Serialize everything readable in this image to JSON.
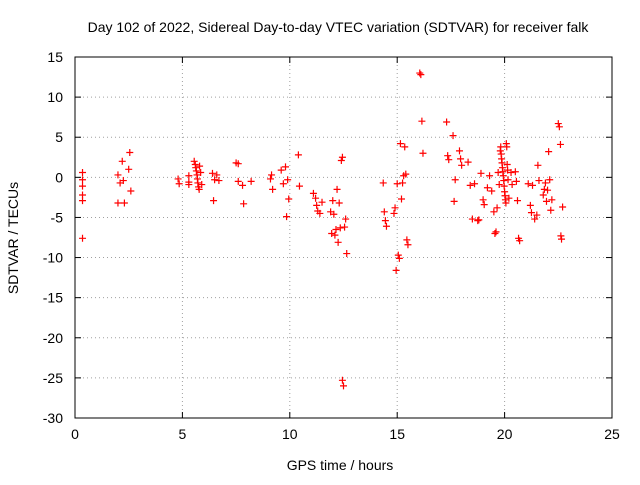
{
  "chart_data": {
    "type": "scatter",
    "title": "Day 102 of 2022, Sidereal Day-to-day VTEC variation (SDTVAR) for receiver falk",
    "xlabel": "GPS time / hours",
    "ylabel": "SDTVAR / TECUs",
    "xlim": [
      0,
      25
    ],
    "ylim": [
      -30,
      15
    ],
    "xticks": [
      0,
      5,
      10,
      15,
      20,
      25
    ],
    "yticks": [
      -30,
      -25,
      -20,
      -15,
      -10,
      -5,
      0,
      5,
      10,
      15
    ],
    "grid": true,
    "marker": "plus",
    "colors": {
      "points": "#ff0000",
      "grid": "#a0a0a0",
      "axes": "#000000"
    },
    "series": [
      {
        "name": "SDTVAR",
        "points": [
          [
            0.35,
            0.6
          ],
          [
            0.35,
            -0.3
          ],
          [
            0.35,
            -1.1
          ],
          [
            0.35,
            -2.2
          ],
          [
            0.35,
            -2.9
          ],
          [
            0.35,
            -7.6
          ],
          [
            2.0,
            0.3
          ],
          [
            2.0,
            -3.2
          ],
          [
            2.1,
            -0.7
          ],
          [
            2.2,
            2.0
          ],
          [
            2.25,
            -0.4
          ],
          [
            2.3,
            -3.2
          ],
          [
            2.5,
            1.0
          ],
          [
            2.55,
            3.1
          ],
          [
            2.6,
            -1.7
          ],
          [
            4.8,
            -0.2
          ],
          [
            4.85,
            -0.8
          ],
          [
            5.3,
            0.2
          ],
          [
            5.3,
            -0.6
          ],
          [
            5.3,
            -0.9
          ],
          [
            5.55,
            2.0
          ],
          [
            5.6,
            1.6
          ],
          [
            5.62,
            1.2
          ],
          [
            5.65,
            0.8
          ],
          [
            5.68,
            0.3
          ],
          [
            5.7,
            -0.2
          ],
          [
            5.72,
            -0.7
          ],
          [
            5.75,
            -1.2
          ],
          [
            5.78,
            -1.5
          ],
          [
            5.8,
            1.4
          ],
          [
            5.85,
            0.6
          ],
          [
            5.9,
            -0.9
          ],
          [
            6.4,
            0.5
          ],
          [
            6.45,
            -2.9
          ],
          [
            6.5,
            -0.3
          ],
          [
            6.6,
            0.3
          ],
          [
            6.7,
            -0.4
          ],
          [
            7.5,
            1.8
          ],
          [
            7.6,
            1.7
          ],
          [
            7.6,
            -0.5
          ],
          [
            7.8,
            -1.0
          ],
          [
            7.85,
            -3.3
          ],
          [
            8.2,
            -0.5
          ],
          [
            9.1,
            -0.2
          ],
          [
            9.15,
            0.3
          ],
          [
            9.2,
            -1.5
          ],
          [
            9.6,
            0.9
          ],
          [
            9.7,
            -0.8
          ],
          [
            9.8,
            1.3
          ],
          [
            9.85,
            -4.9
          ],
          [
            9.9,
            -0.3
          ],
          [
            9.95,
            -2.7
          ],
          [
            10.4,
            2.8
          ],
          [
            10.45,
            -1.1
          ],
          [
            11.1,
            -2.0
          ],
          [
            11.2,
            -2.6
          ],
          [
            11.25,
            -3.5
          ],
          [
            11.3,
            -4.2
          ],
          [
            11.4,
            -4.5
          ],
          [
            11.5,
            -3.1
          ],
          [
            11.9,
            -4.3
          ],
          [
            11.95,
            -7.0
          ],
          [
            12.0,
            -2.9
          ],
          [
            12.05,
            -4.6
          ],
          [
            12.1,
            -7.2
          ],
          [
            12.15,
            -6.5
          ],
          [
            12.2,
            -1.5
          ],
          [
            12.25,
            -8.1
          ],
          [
            12.3,
            -3.2
          ],
          [
            12.35,
            -6.3
          ],
          [
            12.4,
            2.1
          ],
          [
            12.45,
            2.5
          ],
          [
            12.45,
            -25.3
          ],
          [
            12.5,
            -26.0
          ],
          [
            12.55,
            -6.2
          ],
          [
            12.6,
            -5.2
          ],
          [
            12.65,
            -9.5
          ],
          [
            14.35,
            -0.7
          ],
          [
            14.4,
            -4.3
          ],
          [
            14.45,
            -5.4
          ],
          [
            14.5,
            -6.1
          ],
          [
            14.85,
            -4.5
          ],
          [
            14.9,
            -3.8
          ],
          [
            14.95,
            -11.6
          ],
          [
            15.0,
            -0.8
          ],
          [
            15.05,
            -9.7
          ],
          [
            15.1,
            -10.1
          ],
          [
            15.15,
            4.2
          ],
          [
            15.2,
            -2.7
          ],
          [
            15.25,
            -0.7
          ],
          [
            15.3,
            0.2
          ],
          [
            15.35,
            3.8
          ],
          [
            15.4,
            0.4
          ],
          [
            15.45,
            -7.8
          ],
          [
            15.5,
            -8.4
          ],
          [
            16.05,
            13.0
          ],
          [
            16.1,
            12.8
          ],
          [
            16.15,
            7.0
          ],
          [
            16.2,
            3.0
          ],
          [
            17.3,
            6.9
          ],
          [
            17.35,
            2.7
          ],
          [
            17.4,
            2.2
          ],
          [
            17.6,
            5.2
          ],
          [
            17.65,
            -3.0
          ],
          [
            17.7,
            -0.3
          ],
          [
            17.9,
            3.3
          ],
          [
            17.95,
            2.3
          ],
          [
            18.0,
            1.5
          ],
          [
            18.3,
            1.9
          ],
          [
            18.4,
            -1.0
          ],
          [
            18.5,
            -5.2
          ],
          [
            18.6,
            -0.8
          ],
          [
            18.75,
            -5.4
          ],
          [
            18.8,
            -5.3
          ],
          [
            18.9,
            0.5
          ],
          [
            19.0,
            -2.8
          ],
          [
            19.05,
            -3.4
          ],
          [
            19.2,
            -1.3
          ],
          [
            19.3,
            0.2
          ],
          [
            19.4,
            -1.7
          ],
          [
            19.5,
            -4.3
          ],
          [
            19.55,
            -7.0
          ],
          [
            19.6,
            -6.8
          ],
          [
            19.65,
            -3.8
          ],
          [
            19.7,
            0.6
          ],
          [
            19.75,
            -0.9
          ],
          [
            19.8,
            3.3
          ],
          [
            19.82,
            3.8
          ],
          [
            19.84,
            2.9
          ],
          [
            19.86,
            2.3
          ],
          [
            19.88,
            1.8
          ],
          [
            19.9,
            1.2
          ],
          [
            19.92,
            0.7
          ],
          [
            19.94,
            0.2
          ],
          [
            19.96,
            -0.4
          ],
          [
            19.98,
            -1.1
          ],
          [
            20.0,
            -1.8
          ],
          [
            20.02,
            -2.3
          ],
          [
            20.04,
            -2.8
          ],
          [
            20.06,
            -3.2
          ],
          [
            20.08,
            4.2
          ],
          [
            20.1,
            3.8
          ],
          [
            20.12,
            1.6
          ],
          [
            20.14,
            0.9
          ],
          [
            20.16,
            -0.3
          ],
          [
            20.2,
            -2.6
          ],
          [
            20.3,
            0.6
          ],
          [
            20.35,
            -0.9
          ],
          [
            20.5,
            0.7
          ],
          [
            20.55,
            -0.5
          ],
          [
            20.6,
            -2.9
          ],
          [
            20.65,
            -7.6
          ],
          [
            20.7,
            -7.9
          ],
          [
            21.1,
            -0.8
          ],
          [
            21.2,
            -3.5
          ],
          [
            21.25,
            -4.4
          ],
          [
            21.3,
            -1.0
          ],
          [
            21.4,
            -5.2
          ],
          [
            21.5,
            -4.7
          ],
          [
            21.55,
            1.5
          ],
          [
            21.6,
            -0.4
          ],
          [
            21.8,
            -2.2
          ],
          [
            21.85,
            -1.5
          ],
          [
            21.9,
            -0.7
          ],
          [
            21.95,
            -3.0
          ],
          [
            22.0,
            -1.6
          ],
          [
            22.05,
            3.2
          ],
          [
            22.1,
            -0.3
          ],
          [
            22.15,
            -4.1
          ],
          [
            22.2,
            -2.8
          ],
          [
            22.5,
            6.7
          ],
          [
            22.55,
            6.3
          ],
          [
            22.6,
            4.1
          ],
          [
            22.62,
            -7.3
          ],
          [
            22.65,
            -7.7
          ],
          [
            22.7,
            -3.7
          ]
        ]
      }
    ]
  }
}
